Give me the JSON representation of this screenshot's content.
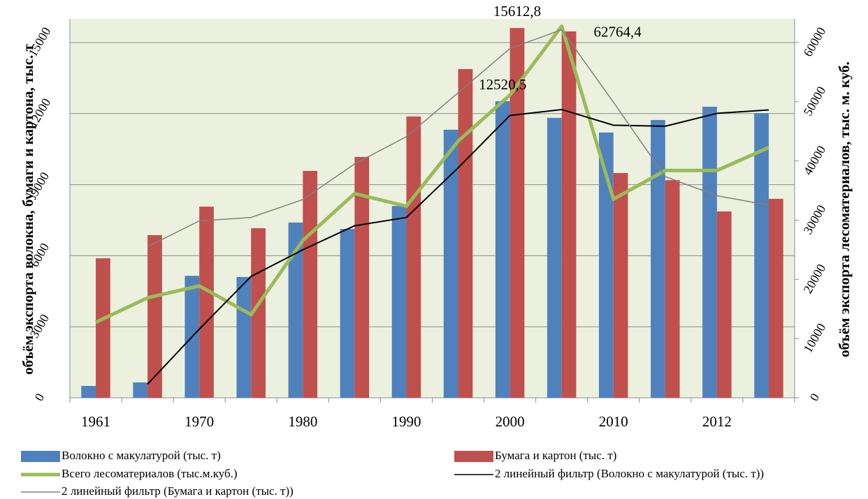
{
  "chart_data": {
    "type": "combo",
    "categories": [
      "1961",
      null,
      "1970",
      null,
      "1980",
      null,
      "1990",
      null,
      "2000",
      null,
      "2010",
      null,
      "2012",
      null
    ],
    "y_label": "объём экспорта волокна, бумаги и картона, тыс. т",
    "y2_label": "объём экспорта лесоматериалов, тыс. м. куб.",
    "ylim": [
      0,
      16000
    ],
    "yticks": [
      0,
      3000,
      6000,
      9000,
      12000,
      15000
    ],
    "y2lim": [
      0,
      64000
    ],
    "y2ticks": [
      0,
      10000,
      20000,
      30000,
      40000,
      50000,
      60000
    ],
    "grid": true,
    "legend": "bottom",
    "plot_background": "#ebf1de",
    "series": [
      {
        "name": "Волокно с макулатурой (тыс. т)",
        "type": "bar",
        "color": "#4f81bd",
        "values": [
          500,
          650,
          5150,
          5100,
          7400,
          7130,
          8100,
          11320,
          12520.5,
          11820,
          11200,
          11730,
          12290,
          12020
        ],
        "value_labels": [
          null,
          null,
          null,
          null,
          null,
          null,
          null,
          null,
          "12520,5",
          null,
          null,
          null,
          null,
          null
        ]
      },
      {
        "name": "Бумага и картон (тыс. т)",
        "type": "bar",
        "color": "#c0504d",
        "values": [
          5890,
          6870,
          8070,
          7160,
          9580,
          10170,
          11880,
          13880,
          15612.8,
          15470,
          9490,
          9190,
          7870,
          8400
        ],
        "value_labels": [
          null,
          null,
          null,
          null,
          null,
          null,
          null,
          null,
          "15612,8",
          null,
          null,
          null,
          null,
          null
        ]
      },
      {
        "name": "Всего лесоматериалов (тыс.м.куб.)",
        "type": "line",
        "axis": "y2",
        "color": "#9bbb59",
        "values": [
          12760,
          16890,
          18900,
          14050,
          26570,
          34490,
          32360,
          43350,
          51140,
          62764.4,
          33540,
          38390,
          38390,
          42280
        ],
        "value_labels": [
          null,
          null,
          null,
          null,
          null,
          null,
          null,
          null,
          null,
          "62764,4",
          null,
          null,
          null,
          null
        ]
      },
      {
        "name": "2 линейный фильтр (Волокно с макулатурой (тыс. т))",
        "type": "moving_average",
        "period": 2,
        "source": 0,
        "color": "#000000"
      },
      {
        "name": "2 линейный фильтр (Бумага и картон (тыс. т))",
        "type": "moving_average",
        "period": 2,
        "source": 1,
        "color": "#808080"
      }
    ]
  }
}
